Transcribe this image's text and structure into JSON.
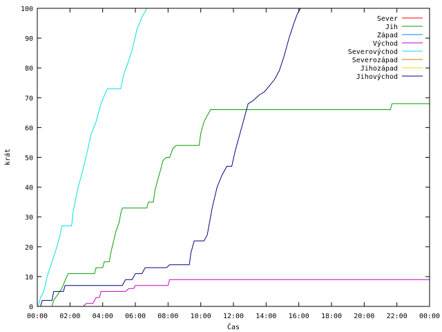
{
  "chart_data": {
    "type": "line",
    "title": "",
    "xlabel": "Čas",
    "ylabel": "krát",
    "x_ticks": [
      "00:00",
      "02:00",
      "04:00",
      "06:00",
      "08:00",
      "10:00",
      "12:00",
      "14:00",
      "16:00",
      "18:00",
      "20:00",
      "22:00",
      "00:00"
    ],
    "x_range_hours": [
      0,
      24
    ],
    "y_ticks": [
      0,
      10,
      20,
      30,
      40,
      50,
      60,
      70,
      80,
      90,
      100
    ],
    "ylim": [
      0,
      100
    ],
    "grid": false,
    "legend_position": "top-right",
    "series": [
      {
        "name": "Sever",
        "color": "#ff0000",
        "points": []
      },
      {
        "name": "Jih",
        "color": "#00a000",
        "points": [
          [
            0.9,
            0
          ],
          [
            1.0,
            2
          ],
          [
            1.5,
            6
          ],
          [
            1.8,
            10
          ],
          [
            1.9,
            11
          ],
          [
            3.5,
            11
          ],
          [
            3.6,
            13
          ],
          [
            4.0,
            13
          ],
          [
            4.1,
            15
          ],
          [
            4.4,
            15
          ],
          [
            4.5,
            18
          ],
          [
            4.8,
            25
          ],
          [
            5.0,
            28
          ],
          [
            5.1,
            31
          ],
          [
            5.2,
            33
          ],
          [
            6.7,
            33
          ],
          [
            6.8,
            35
          ],
          [
            7.1,
            35
          ],
          [
            7.2,
            39
          ],
          [
            7.5,
            45
          ],
          [
            7.7,
            49
          ],
          [
            7.9,
            50
          ],
          [
            8.1,
            50
          ],
          [
            8.3,
            53
          ],
          [
            8.5,
            54
          ],
          [
            9.9,
            54
          ],
          [
            10.0,
            58
          ],
          [
            10.2,
            62
          ],
          [
            10.4,
            64
          ],
          [
            10.6,
            66
          ],
          [
            21.6,
            66
          ],
          [
            21.7,
            68
          ],
          [
            24,
            68
          ]
        ]
      },
      {
        "name": "Západ",
        "color": "#0080ff",
        "points": []
      },
      {
        "name": "Východ",
        "color": "#c000c0",
        "points": [
          [
            2.8,
            0
          ],
          [
            3.0,
            1
          ],
          [
            3.4,
            1
          ],
          [
            3.6,
            3
          ],
          [
            3.8,
            3
          ],
          [
            3.9,
            5
          ],
          [
            5.4,
            5
          ],
          [
            5.6,
            6
          ],
          [
            5.9,
            6
          ],
          [
            6.0,
            7
          ],
          [
            8.0,
            7
          ],
          [
            8.1,
            9
          ],
          [
            24,
            9
          ]
        ]
      },
      {
        "name": "Severovýchod",
        "color": "#00e0e0",
        "points": [
          [
            0.05,
            0
          ],
          [
            0.2,
            3
          ],
          [
            0.4,
            5
          ],
          [
            0.6,
            10
          ],
          [
            0.9,
            15
          ],
          [
            1.2,
            20
          ],
          [
            1.4,
            24
          ],
          [
            1.5,
            27
          ],
          [
            2.1,
            27
          ],
          [
            2.2,
            32
          ],
          [
            2.5,
            40
          ],
          [
            2.8,
            46
          ],
          [
            3.1,
            53
          ],
          [
            3.3,
            58
          ],
          [
            3.6,
            62
          ],
          [
            3.9,
            68
          ],
          [
            4.2,
            72
          ],
          [
            4.3,
            73
          ],
          [
            5.1,
            73
          ],
          [
            5.3,
            78
          ],
          [
            5.5,
            81
          ],
          [
            5.8,
            86
          ],
          [
            6.1,
            93
          ],
          [
            6.4,
            97
          ],
          [
            6.7,
            100
          ],
          [
            6.85,
            100
          ]
        ]
      },
      {
        "name": "Severozápad",
        "color": "#c08000",
        "points": []
      },
      {
        "name": "Jihozápad",
        "color": "#ffd700",
        "points": []
      },
      {
        "name": "Jihovýchod",
        "color": "#000080",
        "points": [
          [
            0.2,
            0
          ],
          [
            0.3,
            2
          ],
          [
            0.9,
            2
          ],
          [
            1.0,
            5
          ],
          [
            1.6,
            5
          ],
          [
            1.7,
            7
          ],
          [
            5.2,
            7
          ],
          [
            5.4,
            9
          ],
          [
            5.8,
            9
          ],
          [
            6.0,
            11
          ],
          [
            6.4,
            11
          ],
          [
            6.6,
            13
          ],
          [
            7.9,
            13
          ],
          [
            8.1,
            14
          ],
          [
            9.3,
            14
          ],
          [
            9.4,
            18
          ],
          [
            9.6,
            22
          ],
          [
            10.2,
            22
          ],
          [
            10.4,
            24
          ],
          [
            10.5,
            27
          ],
          [
            10.7,
            33
          ],
          [
            11.0,
            40
          ],
          [
            11.3,
            44
          ],
          [
            11.6,
            47
          ],
          [
            11.9,
            47
          ],
          [
            12.1,
            52
          ],
          [
            12.4,
            58
          ],
          [
            12.7,
            64
          ],
          [
            12.9,
            68
          ],
          [
            13.2,
            69
          ],
          [
            13.4,
            70
          ],
          [
            13.6,
            71
          ],
          [
            13.9,
            72
          ],
          [
            14.2,
            74
          ],
          [
            14.5,
            76
          ],
          [
            14.8,
            79
          ],
          [
            15.1,
            84
          ],
          [
            15.4,
            90
          ],
          [
            15.7,
            95
          ],
          [
            15.9,
            98
          ],
          [
            16.1,
            100
          ],
          [
            16.2,
            100
          ]
        ]
      }
    ]
  }
}
